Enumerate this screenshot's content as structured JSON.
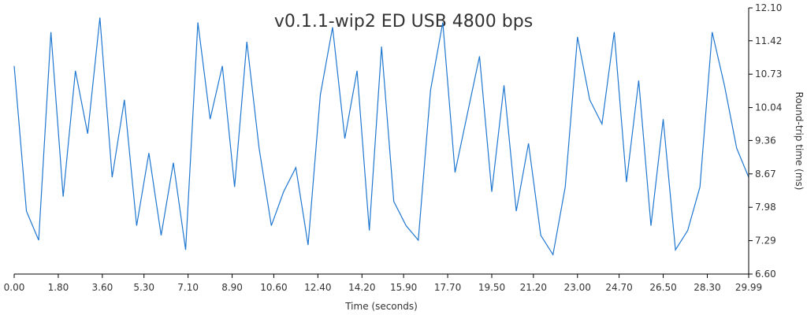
{
  "chart_data": {
    "type": "line",
    "title": "v0.1.1-wip2 ED USB 4800 bps",
    "xlabel": "Time (seconds)",
    "ylabel": "Round-trip time (ms)",
    "xlim": [
      0,
      29.99
    ],
    "ylim": [
      6.6,
      12.1
    ],
    "x_ticks": [
      "0.00",
      "1.80",
      "3.60",
      "5.30",
      "7.10",
      "8.90",
      "10.60",
      "12.40",
      "14.20",
      "15.90",
      "17.70",
      "19.50",
      "21.20",
      "23.00",
      "24.70",
      "26.50",
      "28.30",
      "29.99"
    ],
    "y_ticks": [
      "6.60",
      "7.29",
      "7.98",
      "8.67",
      "9.36",
      "10.04",
      "10.73",
      "11.42",
      "12.10"
    ],
    "color": "#1f77d0",
    "grid": false,
    "series": [
      {
        "x": [
          0.0,
          0.5,
          1.0,
          1.5,
          2.0,
          2.5,
          3.0,
          3.5,
          4.0,
          4.5,
          5.0,
          5.5,
          6.0,
          6.5,
          7.0,
          7.5,
          8.0,
          8.5,
          9.0,
          9.5,
          10.0,
          10.5,
          11.0,
          11.5,
          12.0,
          12.5,
          13.0,
          13.5,
          14.0,
          14.5,
          15.0,
          15.5,
          16.0,
          16.5,
          17.0,
          17.5,
          18.0,
          18.5,
          19.0,
          19.5,
          20.0,
          20.5,
          21.0,
          21.5,
          22.0,
          22.5,
          23.0,
          23.5,
          24.0,
          24.5,
          25.0,
          25.5,
          26.0,
          26.5,
          27.0,
          27.5,
          28.0,
          28.5,
          29.0,
          29.5,
          29.99
        ],
        "y": [
          10.9,
          7.9,
          7.3,
          11.6,
          8.2,
          10.8,
          9.5,
          11.9,
          8.6,
          10.2,
          7.6,
          9.1,
          7.4,
          8.9,
          7.1,
          11.8,
          9.8,
          10.9,
          8.4,
          11.4,
          9.2,
          7.6,
          8.3,
          8.8,
          7.2,
          10.3,
          11.7,
          9.4,
          10.8,
          7.5,
          11.3,
          8.1,
          7.6,
          7.3,
          10.4,
          11.8,
          8.7,
          9.9,
          11.1,
          8.3,
          10.5,
          7.9,
          9.3,
          7.4,
          7.0,
          8.4,
          11.5,
          10.2,
          9.7,
          11.6,
          8.5,
          10.6,
          7.6,
          9.8,
          7.1,
          7.5,
          8.4,
          11.6,
          10.5,
          9.2,
          8.6
        ]
      }
    ]
  }
}
